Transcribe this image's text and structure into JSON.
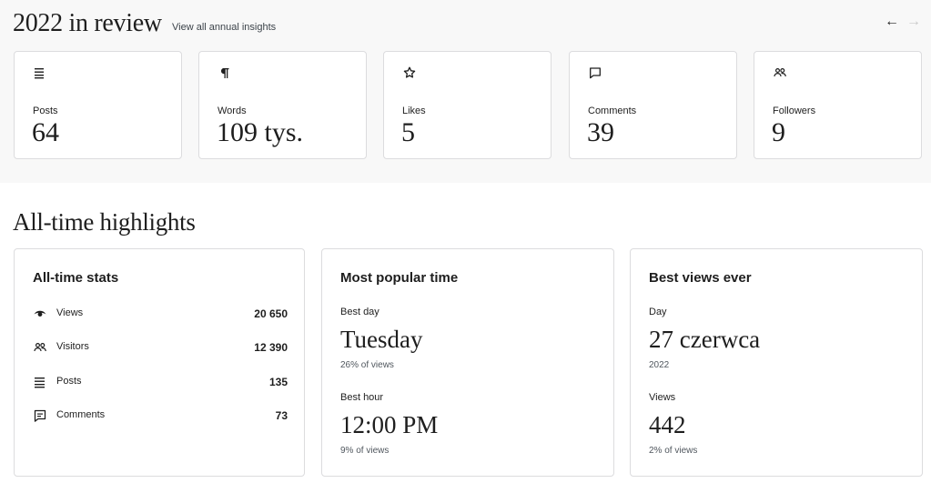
{
  "annual": {
    "title": "2022 in review",
    "link": "View all annual insights",
    "prev_arrow": "←",
    "next_arrow": "→",
    "cards": [
      {
        "icon": "posts-icon",
        "label": "Posts",
        "value": "64"
      },
      {
        "icon": "paragraph-icon",
        "label": "Words",
        "value": "109 tys."
      },
      {
        "icon": "star-icon",
        "label": "Likes",
        "value": "5"
      },
      {
        "icon": "comment-icon",
        "label": "Comments",
        "value": "39"
      },
      {
        "icon": "people-icon",
        "label": "Followers",
        "value": "9"
      }
    ]
  },
  "highlights": {
    "title": "All-time highlights",
    "all_time_stats": {
      "title": "All-time stats",
      "rows": [
        {
          "icon": "eye-icon",
          "label": "Views",
          "value": "20 650"
        },
        {
          "icon": "people-icon",
          "label": "Visitors",
          "value": "12 390"
        },
        {
          "icon": "posts-icon",
          "label": "Posts",
          "value": "135"
        },
        {
          "icon": "comment-icon",
          "label": "Comments",
          "value": "73"
        }
      ]
    },
    "popular_time": {
      "title": "Most popular time",
      "best_day_label": "Best day",
      "best_day": "Tuesday",
      "best_day_share": "26% of views",
      "best_hour_label": "Best hour",
      "best_hour": "12:00 PM",
      "best_hour_share": "9% of views"
    },
    "best_views": {
      "title": "Best views ever",
      "day_label": "Day",
      "day": "27 czerwca",
      "year": "2022",
      "views_label": "Views",
      "views": "442",
      "views_share": "2% of views"
    }
  },
  "colors": {
    "text": "#1e1e1e",
    "muted": "#50575e",
    "border": "#dcdcde",
    "section_bg": "#f8f8f8",
    "arrow_disabled": "#c9c9c9"
  }
}
